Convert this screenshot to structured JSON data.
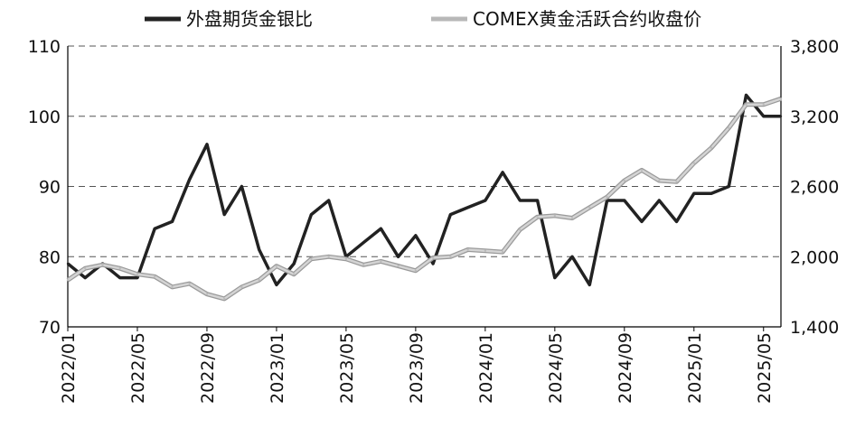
{
  "chart_data": {
    "type": "line",
    "title": "",
    "xlabel": "",
    "ylabel": "",
    "legend_position": "top",
    "grid": "horizontal-dashed",
    "x_ticks": [
      "2022/01",
      "2022/05",
      "2022/09",
      "2023/01",
      "2023/05",
      "2023/09",
      "2024/01",
      "2024/05",
      "2024/09",
      "2025/01",
      "2025/05"
    ],
    "y_left": {
      "ticks": [
        "70",
        "80",
        "90",
        "100",
        "110"
      ],
      "lim": [
        70,
        110
      ]
    },
    "y_right": {
      "ticks": [
        "1,400",
        "2,000",
        "2,600",
        "3,200",
        "3,800"
      ],
      "lim": [
        1400,
        3800
      ]
    },
    "x_range": [
      "2022/01",
      "2025/06"
    ],
    "series": [
      {
        "name": "外盘期货金银比",
        "axis": "left",
        "color": "#222222",
        "x": [
          "2022/01",
          "2022/02",
          "2022/03",
          "2022/04",
          "2022/05",
          "2022/06",
          "2022/07",
          "2022/08",
          "2022/09",
          "2022/10",
          "2022/11",
          "2022/12",
          "2023/01",
          "2023/02",
          "2023/03",
          "2023/04",
          "2023/05",
          "2023/06",
          "2023/07",
          "2023/08",
          "2023/09",
          "2023/10",
          "2023/11",
          "2023/12",
          "2024/01",
          "2024/02",
          "2024/03",
          "2024/04",
          "2024/05",
          "2024/06",
          "2024/07",
          "2024/08",
          "2024/09",
          "2024/10",
          "2024/11",
          "2024/12",
          "2025/01",
          "2025/02",
          "2025/03",
          "2025/04",
          "2025/05",
          "2025/06"
        ],
        "values": [
          79,
          77,
          79,
          77,
          77,
          84,
          85,
          91,
          96,
          86,
          90,
          81,
          76,
          79,
          86,
          88,
          80,
          82,
          84,
          80,
          83,
          79,
          86,
          87,
          88,
          92,
          88,
          88,
          77,
          80,
          76,
          88,
          88,
          85,
          88,
          85,
          89,
          89,
          90,
          103,
          100,
          100
        ]
      },
      {
        "name": "COMEX黄金活跃合约收盘价",
        "axis": "right",
        "color": "#b8b8b8",
        "x": [
          "2022/01",
          "2022/02",
          "2022/03",
          "2022/04",
          "2022/05",
          "2022/06",
          "2022/07",
          "2022/08",
          "2022/09",
          "2022/10",
          "2022/11",
          "2022/12",
          "2023/01",
          "2023/02",
          "2023/03",
          "2023/04",
          "2023/05",
          "2023/06",
          "2023/07",
          "2023/08",
          "2023/09",
          "2023/10",
          "2023/11",
          "2023/12",
          "2024/01",
          "2024/02",
          "2024/03",
          "2024/04",
          "2024/05",
          "2024/06",
          "2024/07",
          "2024/08",
          "2024/09",
          "2024/10",
          "2024/11",
          "2024/12",
          "2025/01",
          "2025/02",
          "2025/03",
          "2025/04",
          "2025/05",
          "2025/06"
        ],
        "values": [
          1800,
          1900,
          1930,
          1900,
          1850,
          1830,
          1740,
          1770,
          1680,
          1640,
          1740,
          1800,
          1920,
          1850,
          1980,
          2000,
          1980,
          1930,
          1960,
          1920,
          1880,
          1990,
          2000,
          2060,
          2050,
          2040,
          2230,
          2340,
          2350,
          2330,
          2420,
          2510,
          2650,
          2740,
          2650,
          2640,
          2800,
          2930,
          3100,
          3300,
          3300,
          3350
        ]
      }
    ]
  }
}
